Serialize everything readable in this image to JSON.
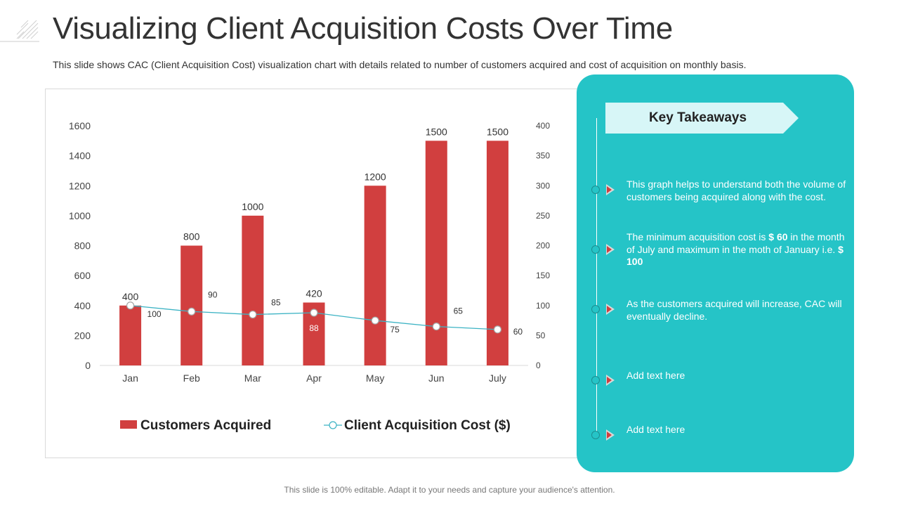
{
  "page": {
    "title": "Visualizing Client Acquisition Costs Over Time",
    "subtitle": "This slide shows CAC (Client Acquisition Cost) visualization chart with details related to number of customers acquired and cost of acquisition on monthly basis.",
    "footer": "This slide is 100% editable. Adapt it to your needs and capture your audience's attention."
  },
  "colors": {
    "bar": "#d13f3f",
    "line": "#3cb3c4",
    "panel": "#25c4c7",
    "banner": "#d7f6f7"
  },
  "chart_data": {
    "type": "bar",
    "title": "",
    "categories": [
      "Jan",
      "Feb",
      "Mar",
      "Apr",
      "May",
      "Jun",
      "July"
    ],
    "series": [
      {
        "name": "Customers Acquired",
        "type": "bar",
        "axis": "left",
        "values": [
          400,
          800,
          1000,
          420,
          1200,
          1500,
          1500
        ],
        "labels": [
          "400",
          "800",
          "1000",
          "420",
          "1200",
          "1500",
          "1500"
        ]
      },
      {
        "name": "Client Acquisition Cost ($)",
        "type": "line",
        "axis": "right",
        "values": [
          100,
          90,
          85,
          88,
          75,
          65,
          60
        ],
        "labels": [
          "100",
          "90",
          "85",
          "88",
          "75",
          "65",
          "60"
        ]
      }
    ],
    "y_left": {
      "lim": [
        0,
        1600
      ],
      "ticks": [
        "0",
        "200",
        "400",
        "600",
        "800",
        "1000",
        "1200",
        "1400",
        "1600"
      ]
    },
    "y_right": {
      "lim": [
        0,
        400
      ],
      "ticks": [
        "0",
        "50",
        "100",
        "150",
        "200",
        "250",
        "300",
        "350",
        "400"
      ]
    },
    "legend": {
      "position": "bottom"
    },
    "grid": false
  },
  "takeaways": {
    "title": "Key Takeaways",
    "items": [
      {
        "parts": [
          {
            "text": "This graph helps to understand both the volume of customers being acquired along with the cost.",
            "bold": false
          }
        ]
      },
      {
        "parts": [
          {
            "text": "The minimum acquisition cost is ",
            "bold": false
          },
          {
            "text": "$ 60",
            "bold": true
          },
          {
            "text": " in the month of July and maximum in the moth of January i.e. ",
            "bold": false
          },
          {
            "text": "$ 100",
            "bold": true
          }
        ]
      },
      {
        "parts": [
          {
            "text": "As the customers acquired will increase, CAC will eventually decline.",
            "bold": false
          }
        ]
      },
      {
        "parts": [
          {
            "text": "Add text here",
            "bold": false
          }
        ]
      },
      {
        "parts": [
          {
            "text": "Add text here",
            "bold": false
          }
        ]
      }
    ]
  }
}
